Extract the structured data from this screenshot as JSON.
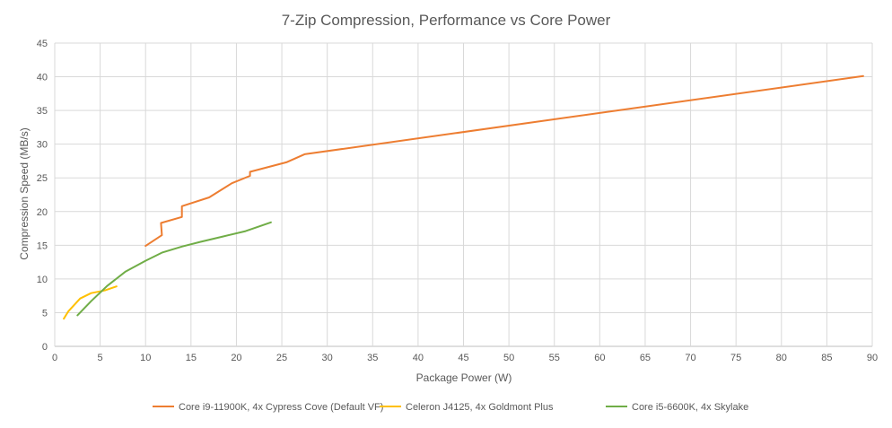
{
  "chart_data": {
    "type": "line",
    "title": "7-Zip Compression, Performance vs Core Power",
    "xlabel": "Package Power (W)",
    "ylabel": "Compression Speed (MB/s)",
    "xlim": [
      0,
      90
    ],
    "ylim": [
      0,
      45
    ],
    "xticks": [
      "0",
      "5",
      "10",
      "15",
      "20",
      "25",
      "30",
      "35",
      "40",
      "45",
      "50",
      "55",
      "60",
      "65",
      "70",
      "75",
      "80",
      "85",
      "90"
    ],
    "yticks": [
      "0",
      "5",
      "10",
      "15",
      "20",
      "25",
      "30",
      "35",
      "40",
      "45"
    ],
    "grid": true,
    "legend_position": "bottom",
    "series": [
      {
        "name": "Core i9-11900K, 4x Cypress Cove (Default VF)",
        "color": "#ED7D31",
        "points": [
          [
            10,
            14.9
          ],
          [
            11.8,
            16.5
          ],
          [
            11.7,
            18.3
          ],
          [
            14,
            19.2
          ],
          [
            14,
            20.8
          ],
          [
            17,
            22.1
          ],
          [
            19.5,
            24.2
          ],
          [
            21.5,
            25.3
          ],
          [
            21.5,
            25.9
          ],
          [
            25.5,
            27.3
          ],
          [
            27.5,
            28.5
          ],
          [
            89,
            40.1
          ]
        ]
      },
      {
        "name": "Celeron J4125, 4x Goldmont Plus",
        "color": "#FFC000",
        "points": [
          [
            1,
            4.1
          ],
          [
            1.5,
            5.2
          ],
          [
            2.8,
            7.1
          ],
          [
            4,
            7.9
          ],
          [
            5.5,
            8.3
          ],
          [
            6.8,
            8.9
          ]
        ]
      },
      {
        "name": "Core i5-6600K, 4x Skylake",
        "color": "#70AD47",
        "points": [
          [
            2.5,
            4.6
          ],
          [
            4,
            6.7
          ],
          [
            5.8,
            9.0
          ],
          [
            7.8,
            11.1
          ],
          [
            10,
            12.7
          ],
          [
            11.8,
            13.9
          ],
          [
            14,
            14.8
          ],
          [
            16,
            15.5
          ],
          [
            18.5,
            16.3
          ],
          [
            21,
            17.1
          ],
          [
            23.8,
            18.4
          ]
        ]
      }
    ]
  }
}
